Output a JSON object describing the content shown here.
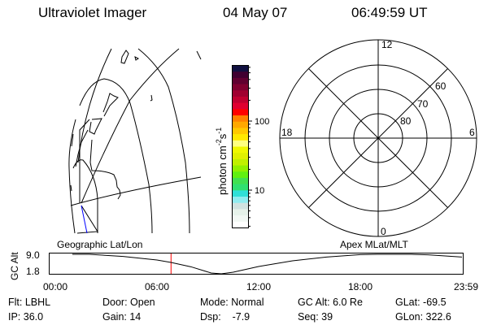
{
  "header": {
    "instrument": "Ultraviolet Imager",
    "date": "04 May 07",
    "time": "06:49:59 UT"
  },
  "colorbar": {
    "label_main": "photon cm",
    "label_exp1": "-2",
    "label_mid": "s",
    "label_exp2": "-1",
    "tick_labels": [
      "100",
      "10"
    ],
    "scale": "log",
    "colors_bottom_to_top": [
      "#ffffff",
      "#f2f8f4",
      "#e6f2ea",
      "#d0e2e0",
      "#90ecf0",
      "#30e0d8",
      "#30e070",
      "#40e050",
      "#60f010",
      "#90f000",
      "#c0f000",
      "#e0f000",
      "#f0f800",
      "#ffff80",
      "#ffe800",
      "#ffc800",
      "#ffa800",
      "#ff8000",
      "#ff0000",
      "#e00030",
      "#c00030",
      "#a00030",
      "#800030",
      "#600030",
      "#400030",
      "#101040"
    ]
  },
  "polar_grid": {
    "mlt_labels": {
      "top": "12",
      "right": "6",
      "bottom": "0",
      "left": "18"
    },
    "mlat_labels": [
      "60",
      "70",
      "80"
    ]
  },
  "chart_data": {
    "type": "line",
    "ylabel": "GC Alt",
    "yticks": [
      "9.0",
      "1.8"
    ],
    "ylim": [
      1.8,
      9.0
    ],
    "xticks": [
      "00:00",
      "06:00",
      "12:00",
      "18:00",
      "23:59"
    ],
    "xlim_hours": [
      0,
      24
    ],
    "left_title": "Geographic Lat/Lon",
    "right_title": "Apex MLat/MLT",
    "current_time_hours": 6.83,
    "current_marker_color": "#ff0000",
    "x": [
      1.0,
      2.0,
      4.0,
      6.0,
      6.83,
      8.0,
      9.2,
      9.8,
      10.5,
      12.0,
      14.0,
      16.0,
      18.0,
      19.0,
      20.0,
      21.0,
      22.0,
      24.0
    ],
    "y": [
      9.0,
      9.0,
      8.2,
      6.9,
      6.0,
      4.4,
      2.1,
      1.8,
      2.4,
      4.5,
      6.6,
      8.0,
      8.9,
      9.0,
      9.0,
      9.0,
      8.8,
      8.0
    ]
  },
  "status": {
    "row1": [
      "Flt: LBHL",
      "Door: Open",
      "Mode: Normal",
      "GC Alt: 6.0 Re",
      "GLat: -69.5"
    ],
    "row2": [
      "IP: 36.0",
      "Gain: 14",
      "Dsp:    -7.9",
      "Seq: 39",
      "GLon: 322.6"
    ]
  }
}
